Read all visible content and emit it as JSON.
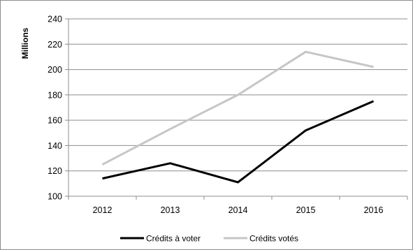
{
  "chart_data": {
    "type": "line",
    "title": "",
    "xlabel": "",
    "ylabel": "Millions",
    "categories": [
      "2012",
      "2013",
      "2014",
      "2015",
      "2016"
    ],
    "ylim": [
      100,
      240
    ],
    "yticks": [
      100,
      120,
      140,
      160,
      180,
      200,
      220,
      240
    ],
    "grid": "horizontal",
    "legend_position": "bottom",
    "series": [
      {
        "name": "Crédits à voter",
        "color": "#000000",
        "values": [
          114,
          126,
          111,
          152,
          175
        ]
      },
      {
        "name": "Crédits votés",
        "color": "#c6c6c6",
        "values": [
          125,
          153,
          180,
          214,
          202
        ]
      }
    ]
  }
}
